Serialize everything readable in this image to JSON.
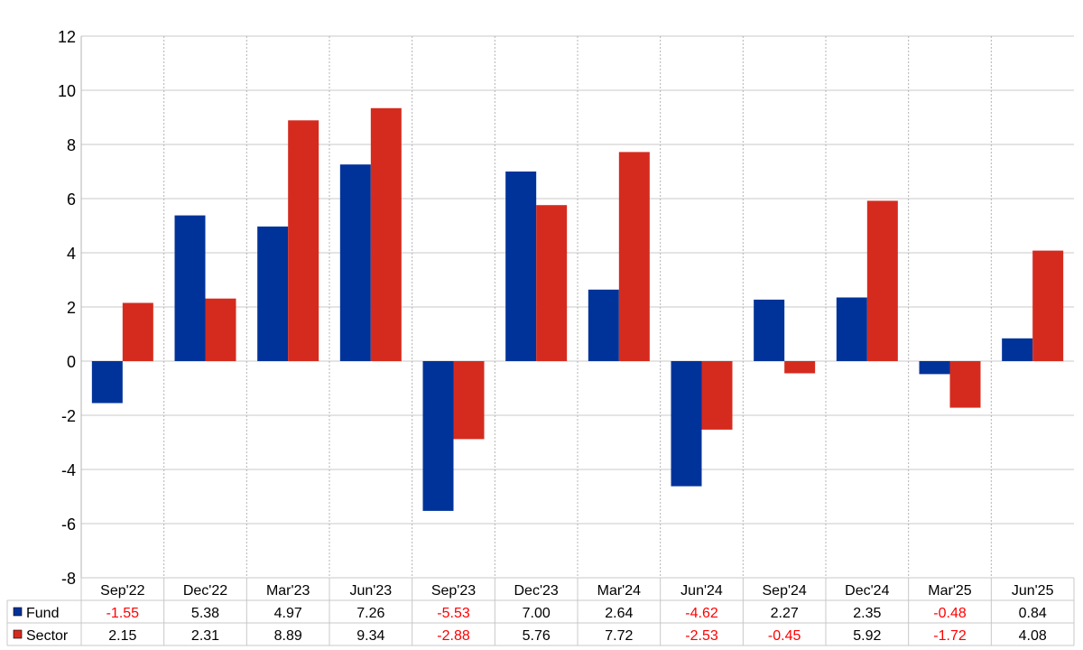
{
  "chart_data": {
    "type": "bar",
    "categories": [
      "Sep'22",
      "Dec'22",
      "Mar'23",
      "Jun'23",
      "Sep'23",
      "Dec'23",
      "Mar'24",
      "Jun'24",
      "Sep'24",
      "Dec'24",
      "Mar'25",
      "Jun'25"
    ],
    "series": [
      {
        "name": "Fund",
        "color": "#003399",
        "values": [
          -1.55,
          5.38,
          4.97,
          7.26,
          -5.53,
          7.0,
          2.64,
          -4.62,
          2.27,
          2.35,
          -0.48,
          0.84
        ],
        "labels": [
          "-1.55",
          "5.38",
          "4.97",
          "7.26",
          "-5.53",
          "7.00",
          "2.64",
          "-4.62",
          "2.27",
          "2.35",
          "-0.48",
          "0.84"
        ]
      },
      {
        "name": "Sector",
        "color": "#d52b1e",
        "values": [
          2.15,
          2.31,
          8.89,
          9.34,
          -2.88,
          5.76,
          7.72,
          -2.53,
          -0.45,
          5.92,
          -1.72,
          4.08
        ],
        "labels": [
          "2.15",
          "2.31",
          "8.89",
          "9.34",
          "-2.88",
          "5.76",
          "7.72",
          "-2.53",
          "-0.45",
          "5.92",
          "-1.72",
          "4.08"
        ]
      }
    ],
    "yticks": [
      "-8",
      "-6",
      "-4",
      "-2",
      "0",
      "2",
      "4",
      "6",
      "8",
      "10",
      "12"
    ],
    "ylim": [
      -8,
      12
    ],
    "grid": true,
    "negative_value_color": "#ff0000",
    "legend": "data table below chart"
  }
}
